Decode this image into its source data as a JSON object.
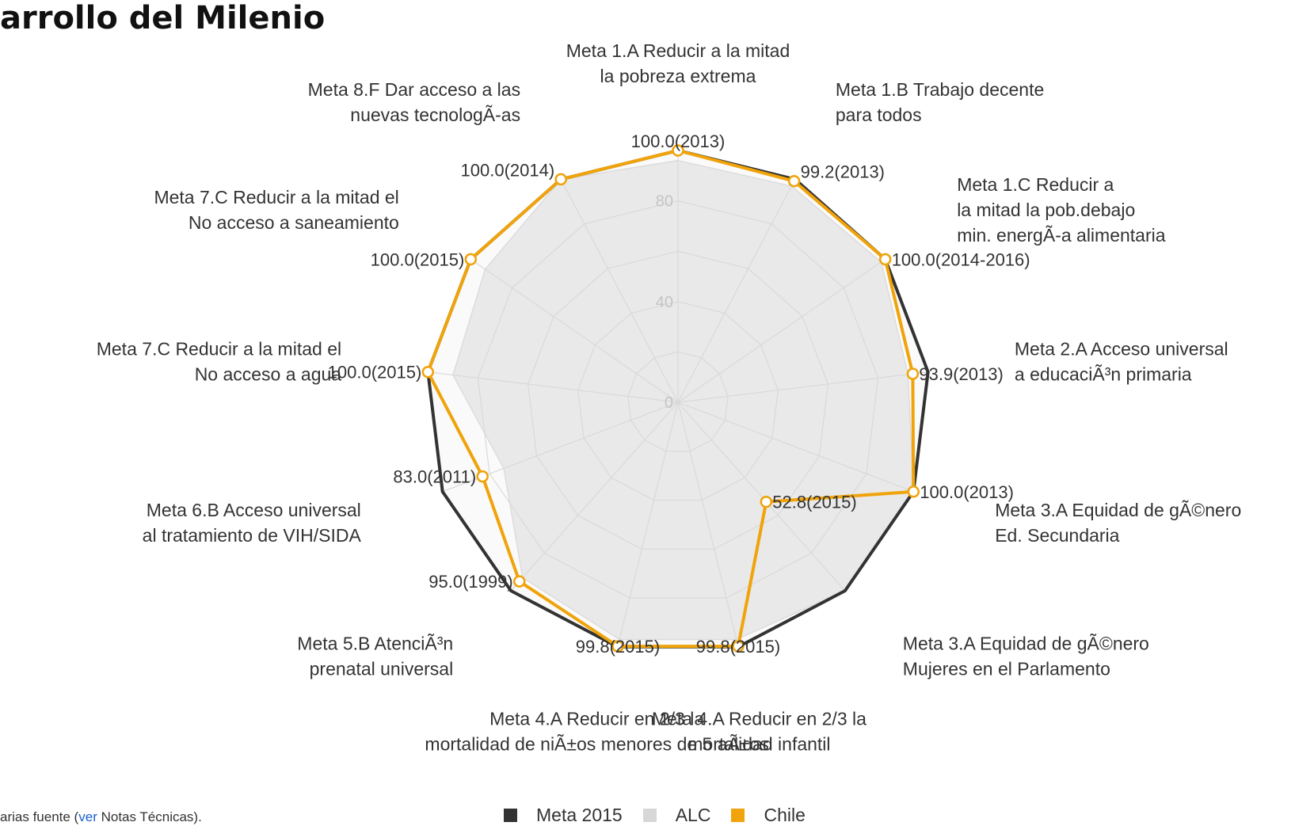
{
  "page": {
    "title": "arrollo del Milenio",
    "footnote": {
      "prefix": "arias fuente (",
      "link": "ver",
      "suffix": " Notas Técnicas)."
    }
  },
  "colors": {
    "meta": "#333333",
    "alc": "#d7d7d7",
    "chile": "#f0a30a",
    "grid": "#d9d9d9",
    "tick": "#c4c4c4"
  },
  "chart_data": {
    "type": "radar",
    "range": [
      0,
      100
    ],
    "ticks": [
      0,
      40,
      80
    ],
    "grid_levels": 5,
    "axes": [
      [
        "Meta 1.A Reducir a la mitad",
        "la pobreza extrema"
      ],
      [
        "Meta 1.B Trabajo decente",
        "para todos"
      ],
      [
        "Meta 1.C Reducir a",
        "la mitad la pob.debajo",
        "min. energÃ-a alimentaria"
      ],
      [
        "Meta 2.A Acceso universal",
        "a educaciÃ³n primaria"
      ],
      [
        "Meta 3.A Equidad de gÃ©nero",
        "Ed. Secundaria"
      ],
      [
        "Meta 3.A Equidad de gÃ©nero",
        "Mujeres en el Parlamento"
      ],
      [
        "Meta 4.A Reducir en 2/3 la",
        "mortalidad infantil"
      ],
      [
        "Meta 4.A Reducir en 2/3 la",
        "mortalidad de niÃ±os menores de 5 aÃ±os"
      ],
      [
        "Meta 5.B AtenciÃ³n",
        "prenatal universal"
      ],
      [
        "Meta 6.B Acceso universal",
        "al tratamiento de VIH/SIDA"
      ],
      [
        "Meta 7.C Reducir a la mitad el",
        "No acceso a agua"
      ],
      [
        "Meta 7.C Reducir a la mitad el",
        "No acceso a saneamiento"
      ],
      [
        "Meta 8.F Dar acceso a las",
        "nuevas tecnologÃ-as"
      ]
    ],
    "series": [
      {
        "name": "Meta 2015",
        "values": [
          100,
          100,
          100,
          100,
          100,
          100,
          100,
          100,
          100,
          100,
          100,
          100,
          100
        ]
      },
      {
        "name": "ALC",
        "values": [
          96,
          97,
          98,
          92,
          100,
          100,
          97,
          97,
          93,
          74,
          90,
          93,
          100
        ]
      },
      {
        "name": "Chile",
        "values": [
          100,
          99.2,
          100,
          93.9,
          100,
          52.8,
          99.8,
          99.8,
          95.0,
          83.0,
          100,
          100,
          100
        ]
      }
    ],
    "data_labels": [
      "100.0(2013)",
      "99.2(2013)",
      "100.0(2014-2016)",
      "93.9(2013)",
      "100.0(2013)",
      "52.8(2015)",
      "99.8(2015)",
      "99.8(2015)",
      "95.0(1999)",
      "83.0(2011)",
      "100.0(2015)",
      "100.0(2015)",
      "100.0(2014)"
    ],
    "legend": [
      "Meta 2015",
      "ALC",
      "Chile"
    ],
    "legend_position": "bottom"
  }
}
